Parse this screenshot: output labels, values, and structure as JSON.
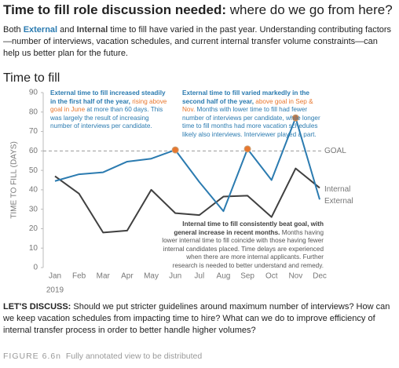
{
  "header": {
    "title": [
      {
        "text": "Time to fill role discussion needed:",
        "style": "bold"
      },
      {
        "text": " where do we go from here?"
      }
    ],
    "subtitle": [
      {
        "text": "Both "
      },
      {
        "text": "External",
        "style": "blue-bold"
      },
      {
        "text": " and "
      },
      {
        "text": "Internal",
        "style": "dark-bold"
      },
      {
        "text": " time to fill have varied in the past year. Understanding contributing factors—number of interviews, vacation schedules, and current internal transfer volume constraints—can help us better plan for the future."
      }
    ]
  },
  "chart_data": {
    "type": "line",
    "title": "Time to fill",
    "ylabel": "TIME TO FILL (DAYS)",
    "xlabel": "2019",
    "categories": [
      "Jan",
      "Feb",
      "Mar",
      "Apr",
      "May",
      "Jun",
      "Jul",
      "Aug",
      "Sep",
      "Oct",
      "Nov",
      "Dec"
    ],
    "series": [
      {
        "name": "Internal",
        "color": "#404040",
        "values": [
          47,
          38,
          18,
          19,
          40,
          28,
          27,
          36.5,
          37,
          26,
          51,
          41
        ]
      },
      {
        "name": "External",
        "color": "#2b7bb0",
        "values": [
          44.5,
          48,
          49,
          54.5,
          56,
          60.5,
          44,
          29,
          61,
          45,
          77,
          35
        ]
      }
    ],
    "ylim": [
      0,
      90
    ],
    "yticks": [
      0,
      10,
      20,
      30,
      40,
      50,
      60,
      70,
      80,
      90
    ],
    "goal": {
      "value": 60,
      "label": "GOAL"
    },
    "highlight_color": "#e8772e",
    "annotations": [
      [
        {
          "text": "External time to fill increased steadily in the first half of the year,",
          "style": "blue-bold"
        },
        {
          "text": " rising above goal in June",
          "style": "orange"
        },
        {
          "text": " at more than 60 days. This was largely the result of increasing number of interviews per candidate.",
          "style": "blue"
        }
      ],
      [
        {
          "text": "External time to fill varied markedly in the second half of the year,",
          "style": "blue-bold"
        },
        {
          "text": " above goal in Sep & Nov.",
          "style": "orange"
        },
        {
          "text": " Months with lower time to fill had fewer number of interviews per candidate, while longer time to fill months had more vacation schedules likely also interviews. Interviewer played a part.",
          "style": "blue"
        }
      ],
      [
        {
          "text": "Internal time to fill consistently beat goal, with general increase in recent months.",
          "style": "dark-bold"
        },
        {
          "text": " Months having lower internal time to fill coincide with those having fewer internal candidates placed. Time delays are experienced when there are more internal applicants. Further research is needed to better understand and remedy.",
          "style": "dark"
        }
      ]
    ]
  },
  "footer": {
    "discussion": [
      {
        "text": "LET'S DISCUSS:",
        "style": "bold"
      },
      {
        "text": " Should we put stricter guidelines around maximum number of interviews? How can we keep vacation schedules from impacting time to hire? What can we do to improve efficiency of internal transfer process in order to better handle higher volumes?"
      }
    ],
    "caption": [
      {
        "text": "FIGURE 6.6n",
        "style": "caption-label"
      },
      {
        "text": "  Fully annotated view to be distributed"
      }
    ]
  }
}
